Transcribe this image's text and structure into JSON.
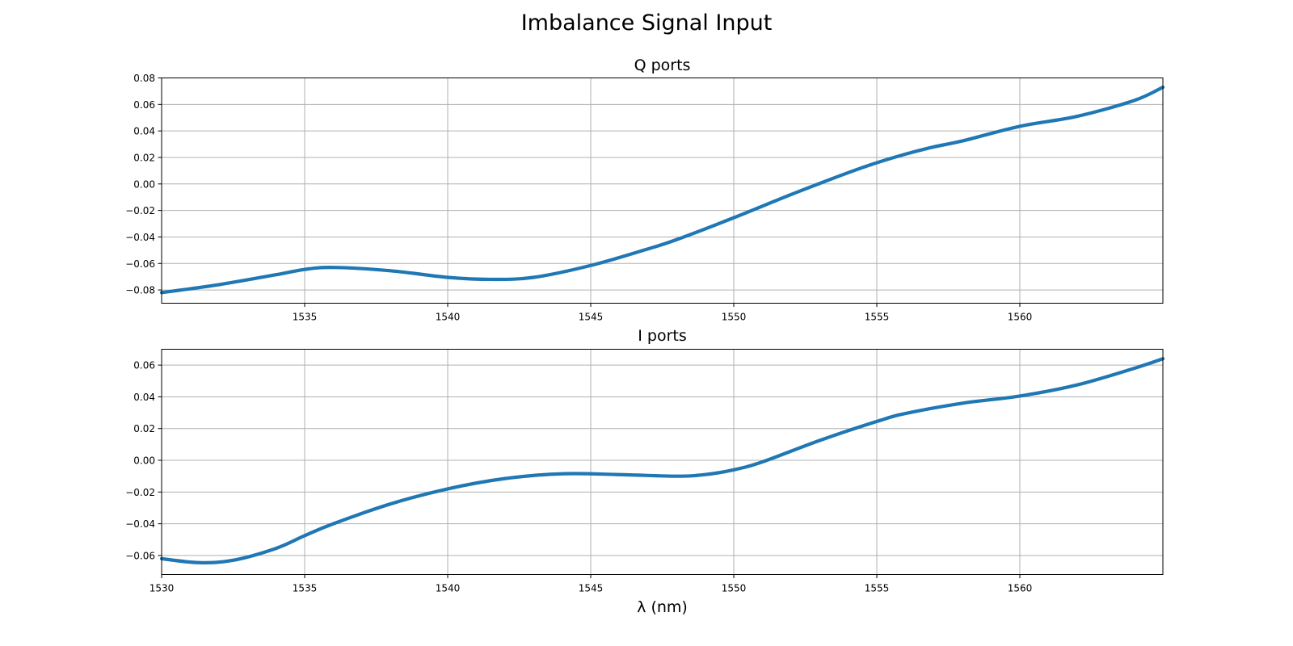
{
  "figure": {
    "title": "Imbalance Signal Input"
  },
  "chart_data": [
    {
      "type": "line",
      "title": "Q ports",
      "xlabel": "",
      "ylabel": "",
      "xlim": [
        1530,
        1565
      ],
      "ylim": [
        -0.09,
        0.08
      ],
      "xticks": [
        1535,
        1540,
        1545,
        1550,
        1555,
        1560
      ],
      "xtick_labels": [
        "1535",
        "1540",
        "1545",
        "1550",
        "1555",
        "1560"
      ],
      "yticks": [
        -0.08,
        -0.06,
        -0.04,
        -0.02,
        0.0,
        0.02,
        0.04,
        0.06,
        0.08
      ],
      "ytick_labels": [
        "−0.08",
        "−0.06",
        "−0.04",
        "−0.02",
        "0.00",
        "0.02",
        "0.04",
        "0.06",
        "0.08"
      ],
      "grid": true,
      "series": [
        {
          "color": "#1f77b4",
          "x": [
            1530,
            1532,
            1534,
            1535,
            1536,
            1538,
            1540,
            1541.5,
            1543,
            1545,
            1547,
            1548,
            1550,
            1552,
            1554,
            1555,
            1556,
            1557,
            1558,
            1560,
            1562,
            1564,
            1565
          ],
          "y": [
            -0.082,
            -0.076,
            -0.0685,
            -0.0645,
            -0.063,
            -0.0655,
            -0.0705,
            -0.072,
            -0.0705,
            -0.0615,
            -0.049,
            -0.042,
            -0.0255,
            -0.008,
            0.0085,
            0.016,
            0.0225,
            0.028,
            0.0325,
            0.0435,
            0.051,
            0.063,
            0.073
          ]
        }
      ]
    },
    {
      "type": "line",
      "title": "I ports",
      "xlabel": "λ (nm)",
      "ylabel": "",
      "xlim": [
        1530,
        1565
      ],
      "ylim": [
        -0.072,
        0.07
      ],
      "xticks": [
        1530,
        1535,
        1540,
        1545,
        1550,
        1555,
        1560
      ],
      "xtick_labels": [
        "1530",
        "1535",
        "1540",
        "1545",
        "1550",
        "1555",
        "1560"
      ],
      "yticks": [
        -0.06,
        -0.04,
        -0.02,
        0.0,
        0.02,
        0.04,
        0.06
      ],
      "ytick_labels": [
        "−0.06",
        "−0.04",
        "−0.02",
        "0.00",
        "0.02",
        "0.04",
        "0.06"
      ],
      "grid": true,
      "series": [
        {
          "color": "#1f77b4",
          "x": [
            1530,
            1531.3,
            1532.5,
            1534,
            1535,
            1536,
            1538,
            1540,
            1542,
            1544,
            1546,
            1548,
            1549,
            1550,
            1551,
            1553,
            1555,
            1556,
            1558,
            1560,
            1562,
            1564,
            1565
          ],
          "y": [
            -0.062,
            -0.0645,
            -0.063,
            -0.0555,
            -0.0475,
            -0.04,
            -0.0275,
            -0.018,
            -0.0115,
            -0.0085,
            -0.009,
            -0.01,
            -0.009,
            -0.006,
            -0.001,
            0.0125,
            0.0245,
            0.0295,
            0.036,
            0.0405,
            0.0475,
            0.058,
            0.064
          ]
        }
      ]
    }
  ]
}
